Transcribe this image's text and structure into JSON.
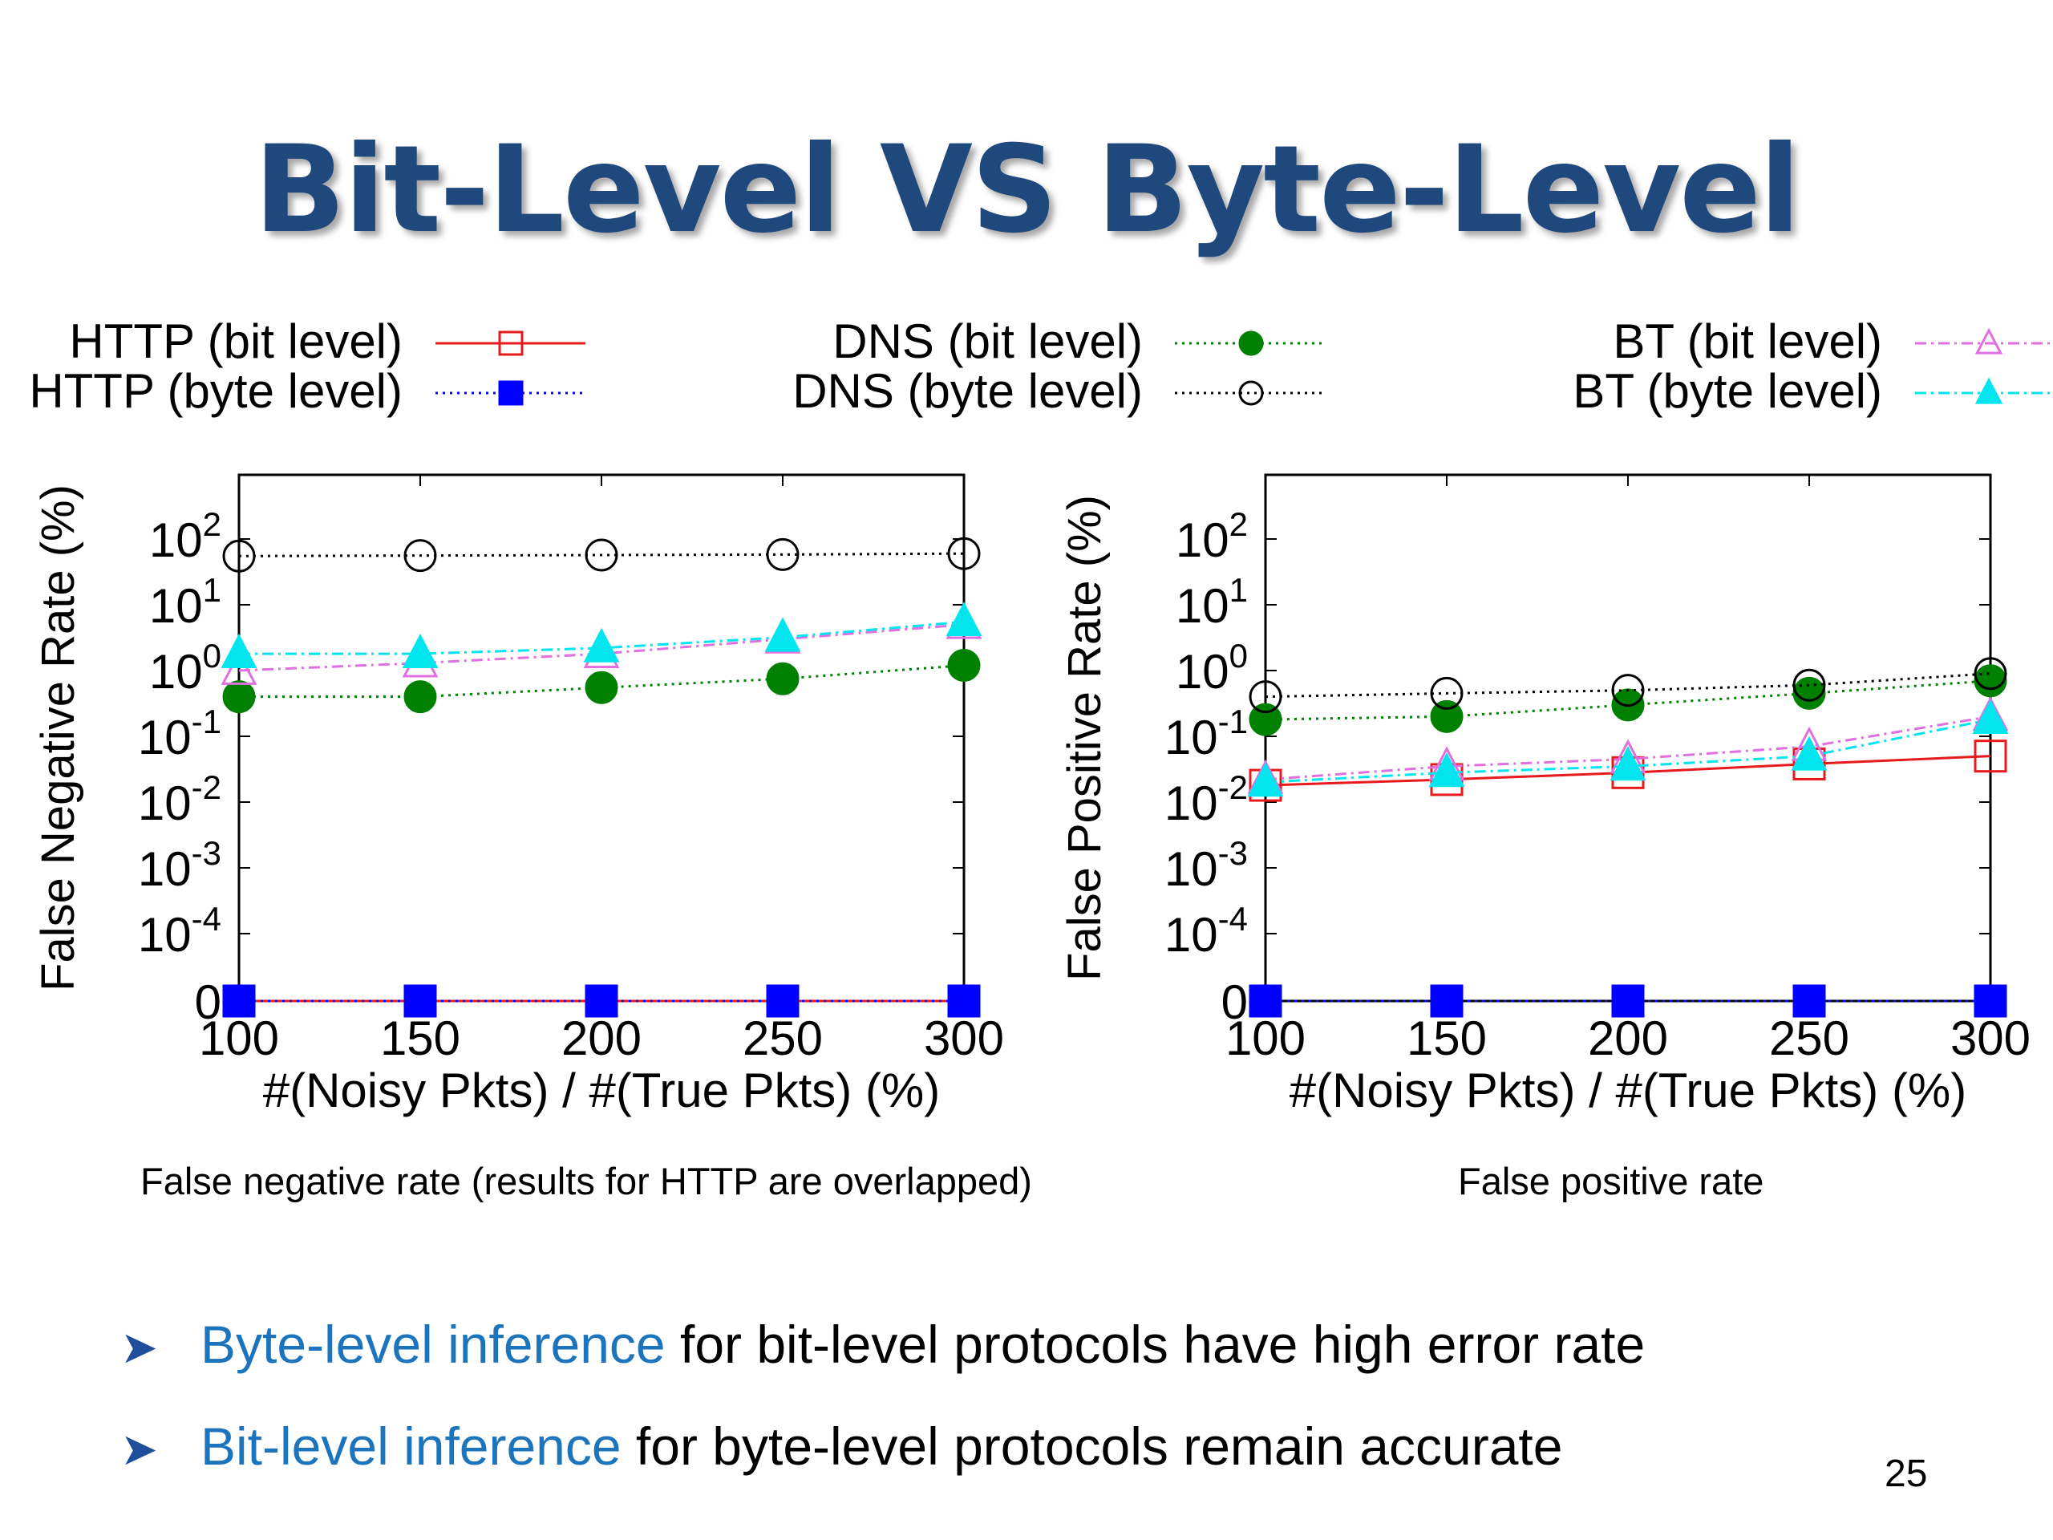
{
  "slide": {
    "title": "Bit-Level VS Byte-Level",
    "page_number": "25",
    "bullets": [
      {
        "highlight": "Byte-level inference",
        "rest": " for bit-level protocols have high error rate"
      },
      {
        "highlight": "Bit-level inference",
        "rest": " for byte-level protocols remain accurate"
      }
    ],
    "arrow": "➤"
  },
  "legend": [
    {
      "label": "HTTP (bit level)",
      "color": "#e8191c",
      "marker": "square-open",
      "dash": "solid"
    },
    {
      "label": "HTTP (byte level)",
      "color": "#0000ff",
      "marker": "square-filled",
      "dash": "dotted"
    },
    {
      "label": "DNS (bit level)",
      "color": "#008000",
      "marker": "circle-filled",
      "dash": "dotted"
    },
    {
      "label": "DNS (byte level)",
      "color": "#000000",
      "marker": "circle-open",
      "dash": "dotted"
    },
    {
      "label": "BT (bit level)",
      "color": "#e070e0",
      "marker": "triangle-open",
      "dash": "dashdot"
    },
    {
      "label": "BT (byte level)",
      "color": "#00e5ee",
      "marker": "triangle-filled",
      "dash": "dashdot"
    }
  ],
  "chart_data": [
    {
      "type": "line",
      "y_scale": "log-with-zero",
      "caption": "False negative rate (results for HTTP are overlapped)",
      "xlabel": "#(Noisy Pkts) / #(True Pkts) (%)",
      "ylabel": "False Negative Rate (%)",
      "x": [
        100,
        150,
        200,
        250,
        300
      ],
      "x_ticks": [
        "100",
        "150",
        "200",
        "250",
        "300"
      ],
      "y_ticks": [
        {
          "base": "10",
          "exp": "2",
          "value": 100
        },
        {
          "base": "10",
          "exp": "1",
          "value": 10
        },
        {
          "base": "10",
          "exp": "0",
          "value": 1
        },
        {
          "base": "10",
          "exp": "-1",
          "value": 0.1
        },
        {
          "base": "10",
          "exp": "-2",
          "value": 0.01
        },
        {
          "base": "10",
          "exp": "-3",
          "value": 0.001
        },
        {
          "base": "10",
          "exp": "-4",
          "value": 0.0001
        },
        {
          "base": "0",
          "exp": "",
          "value": 0
        }
      ],
      "series": [
        {
          "name": "HTTP (bit level)",
          "values": [
            0,
            0,
            0,
            0,
            0
          ]
        },
        {
          "name": "HTTP (byte level)",
          "values": [
            0,
            0,
            0,
            0,
            0
          ]
        },
        {
          "name": "DNS (bit level)",
          "values": [
            0.4,
            0.4,
            0.55,
            0.75,
            1.2
          ]
        },
        {
          "name": "DNS (byte level)",
          "values": [
            55,
            56,
            57,
            58,
            60
          ]
        },
        {
          "name": "BT (bit level)",
          "values": [
            1.0,
            1.3,
            1.8,
            3.0,
            5.0
          ]
        },
        {
          "name": "BT (byte level)",
          "values": [
            1.8,
            1.8,
            2.2,
            3.2,
            5.5
          ]
        }
      ]
    },
    {
      "type": "line",
      "y_scale": "log-with-zero",
      "caption": "False positive rate",
      "xlabel": "#(Noisy Pkts) / #(True Pkts) (%)",
      "ylabel": "False Positive Rate (%)",
      "x": [
        100,
        150,
        200,
        250,
        300
      ],
      "x_ticks": [
        "100",
        "150",
        "200",
        "250",
        "300"
      ],
      "y_ticks": [
        {
          "base": "10",
          "exp": "2",
          "value": 100
        },
        {
          "base": "10",
          "exp": "1",
          "value": 10
        },
        {
          "base": "10",
          "exp": "0",
          "value": 1
        },
        {
          "base": "10",
          "exp": "-1",
          "value": 0.1
        },
        {
          "base": "10",
          "exp": "-2",
          "value": 0.01
        },
        {
          "base": "10",
          "exp": "-3",
          "value": 0.001
        },
        {
          "base": "10",
          "exp": "-4",
          "value": 0.0001
        },
        {
          "base": "0",
          "exp": "",
          "value": 0
        }
      ],
      "series": [
        {
          "name": "HTTP (bit level)",
          "values": [
            0.018,
            0.022,
            0.028,
            0.038,
            0.05
          ]
        },
        {
          "name": "HTTP (byte level)",
          "values": [
            0,
            0,
            0,
            0,
            0
          ]
        },
        {
          "name": "DNS (bit level)",
          "values": [
            0.18,
            0.2,
            0.3,
            0.45,
            0.7
          ]
        },
        {
          "name": "DNS (byte level)",
          "values": [
            0.4,
            0.45,
            0.5,
            0.6,
            0.9
          ]
        },
        {
          "name": "BT (bit level)",
          "values": [
            0.022,
            0.035,
            0.045,
            0.07,
            0.2
          ]
        },
        {
          "name": "BT (byte level)",
          "values": [
            0.02,
            0.028,
            0.035,
            0.05,
            0.18
          ]
        }
      ]
    }
  ]
}
